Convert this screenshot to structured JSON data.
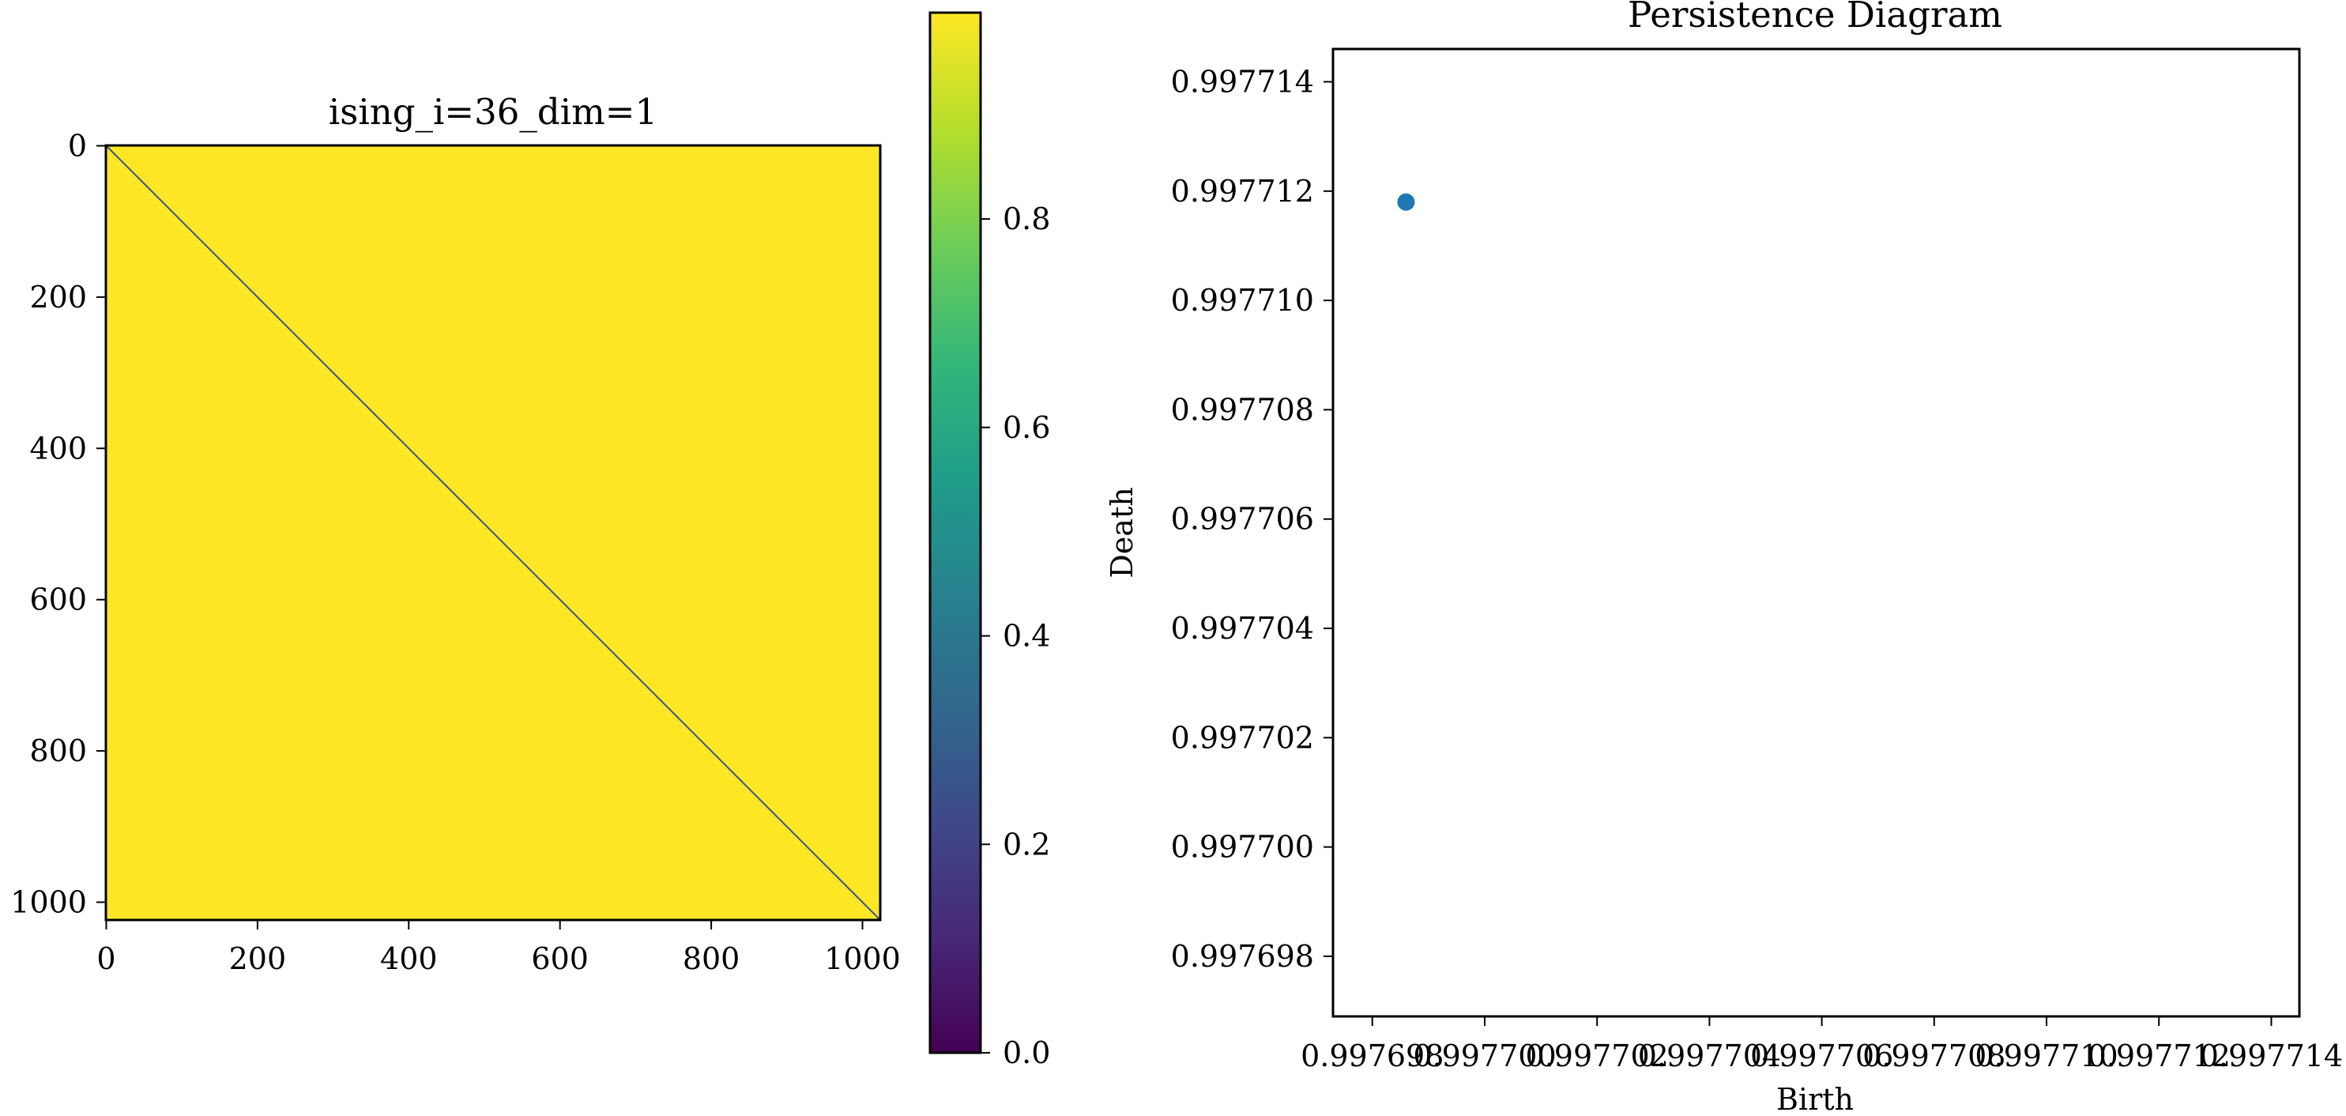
{
  "colors": {
    "heatmap_fill": "#fde725",
    "diagonal": "#3b528b",
    "scatter_point": "#1f77b4",
    "viridis_stops": [
      "#440154",
      "#482878",
      "#3e4989",
      "#31688e",
      "#26828e",
      "#1f9e89",
      "#35b779",
      "#6ece58",
      "#b5de2b",
      "#fde725"
    ]
  },
  "chart_data": [
    {
      "type": "heatmap",
      "title": "ising_i=36_dim=1",
      "x_ticks": [
        "0",
        "200",
        "400",
        "600",
        "800",
        "1000"
      ],
      "y_ticks": [
        "0",
        "200",
        "400",
        "600",
        "800",
        "1000"
      ],
      "x_tick_values": [
        0,
        200,
        400,
        600,
        800,
        1000
      ],
      "y_tick_values": [
        0,
        200,
        400,
        600,
        800,
        1000
      ],
      "matrix_size": 1024,
      "off_diagonal_value": 0.998,
      "diagonal_value": 0.0,
      "colorbar": {
        "ticks": [
          "0.0",
          "0.2",
          "0.4",
          "0.6",
          "0.8"
        ],
        "tick_values": [
          0.0,
          0.2,
          0.4,
          0.6,
          0.8
        ],
        "range": [
          0.0,
          0.998
        ]
      }
    },
    {
      "type": "scatter",
      "title": "Persistence Diagram",
      "xlabel": "Birth",
      "ylabel": "Death",
      "x_ticks": [
        "0.997698",
        "0.997700",
        "0.997702",
        "0.997704",
        "0.997706",
        "0.997708",
        "0.997710",
        "0.997712",
        "0.997714"
      ],
      "y_ticks": [
        "0.997714",
        "0.997712",
        "0.997710",
        "0.997708",
        "0.997706",
        "0.997704",
        "0.997702",
        "0.997700",
        "0.997698"
      ],
      "xlim": [
        0.9976973,
        0.9977145
      ],
      "ylim": [
        0.9976969,
        0.9977146
      ],
      "points": [
        {
          "x": 0.9976986,
          "y": 0.9977118
        }
      ]
    }
  ]
}
